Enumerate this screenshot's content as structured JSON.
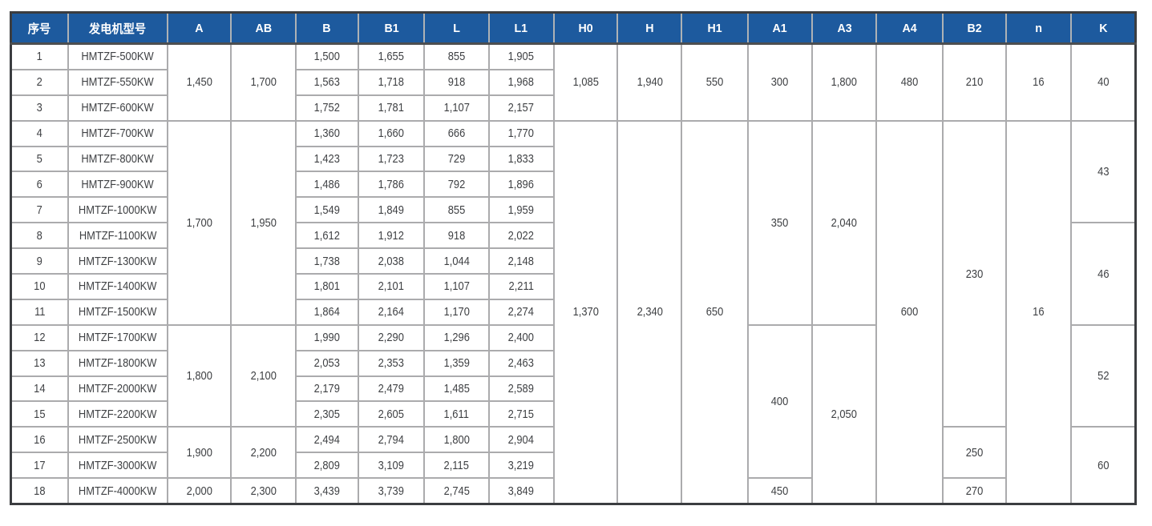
{
  "colors": {
    "header_bg": "#1d5a9e",
    "header_text": "#ffffff",
    "grid_line": "#ababad",
    "outer_border": "#3b3d40",
    "body_text": "#3f4144"
  },
  "table": {
    "columns": [
      {
        "key": "xuhao",
        "label": "序号"
      },
      {
        "key": "model",
        "label": "发电机型号"
      },
      {
        "key": "A",
        "label": "A"
      },
      {
        "key": "AB",
        "label": "AB"
      },
      {
        "key": "B",
        "label": "B"
      },
      {
        "key": "B1",
        "label": "B1"
      },
      {
        "key": "L",
        "label": "L"
      },
      {
        "key": "L1",
        "label": "L1"
      },
      {
        "key": "H0",
        "label": "H0"
      },
      {
        "key": "H",
        "label": "H"
      },
      {
        "key": "H1",
        "label": "H1"
      },
      {
        "key": "A1",
        "label": "A1"
      },
      {
        "key": "A3",
        "label": "A3"
      },
      {
        "key": "A4",
        "label": "A4"
      },
      {
        "key": "B2",
        "label": "B2"
      },
      {
        "key": "n",
        "label": "n"
      },
      {
        "key": "K",
        "label": "K"
      }
    ],
    "rows": [
      {
        "cells": [
          {
            "v": "1"
          },
          {
            "v": "HMTZF-500KW"
          },
          {
            "v": "1,450",
            "rs": 3
          },
          {
            "v": "1,700",
            "rs": 3
          },
          {
            "v": "1,500"
          },
          {
            "v": "1,655"
          },
          {
            "v": "855"
          },
          {
            "v": "1,905"
          },
          {
            "v": "1,085",
            "rs": 3
          },
          {
            "v": "1,940",
            "rs": 3
          },
          {
            "v": "550",
            "rs": 3
          },
          {
            "v": "300",
            "rs": 3
          },
          {
            "v": "1,800",
            "rs": 3
          },
          {
            "v": "480",
            "rs": 3
          },
          {
            "v": "210",
            "rs": 3
          },
          {
            "v": "16",
            "rs": 3
          },
          {
            "v": "40",
            "rs": 3
          }
        ]
      },
      {
        "cells": [
          {
            "v": "2"
          },
          {
            "v": "HMTZF-550KW"
          },
          {
            "v": "1,563"
          },
          {
            "v": "1,718"
          },
          {
            "v": "918"
          },
          {
            "v": "1,968"
          }
        ]
      },
      {
        "cells": [
          {
            "v": "3"
          },
          {
            "v": "HMTZF-600KW"
          },
          {
            "v": "1,752"
          },
          {
            "v": "1,781"
          },
          {
            "v": "1,107"
          },
          {
            "v": "2,157"
          }
        ]
      },
      {
        "cells": [
          {
            "v": "4"
          },
          {
            "v": "HMTZF-700KW"
          },
          {
            "v": "1,700",
            "rs": 8
          },
          {
            "v": "1,950",
            "rs": 8
          },
          {
            "v": "1,360"
          },
          {
            "v": "1,660"
          },
          {
            "v": "666"
          },
          {
            "v": "1,770"
          },
          {
            "v": "1,370",
            "rs": 15
          },
          {
            "v": "2,340",
            "rs": 15
          },
          {
            "v": "650",
            "rs": 15
          },
          {
            "v": "350",
            "rs": 8
          },
          {
            "v": "2,040",
            "rs": 8
          },
          {
            "v": "600",
            "rs": 15
          },
          {
            "v": "230",
            "rs": 12
          },
          {
            "v": "16",
            "rs": 15
          },
          {
            "v": "43",
            "rs": 4
          }
        ]
      },
      {
        "cells": [
          {
            "v": "5"
          },
          {
            "v": "HMTZF-800KW"
          },
          {
            "v": "1,423"
          },
          {
            "v": "1,723"
          },
          {
            "v": "729"
          },
          {
            "v": "1,833"
          }
        ]
      },
      {
        "cells": [
          {
            "v": "6"
          },
          {
            "v": "HMTZF-900KW"
          },
          {
            "v": "1,486"
          },
          {
            "v": "1,786"
          },
          {
            "v": "792"
          },
          {
            "v": "1,896"
          }
        ]
      },
      {
        "cells": [
          {
            "v": "7"
          },
          {
            "v": "HMTZF-1000KW"
          },
          {
            "v": "1,549"
          },
          {
            "v": "1,849"
          },
          {
            "v": "855"
          },
          {
            "v": "1,959"
          }
        ]
      },
      {
        "cells": [
          {
            "v": "8"
          },
          {
            "v": "HMTZF-1100KW"
          },
          {
            "v": "1,612"
          },
          {
            "v": "1,912"
          },
          {
            "v": "918"
          },
          {
            "v": "2,022"
          },
          {
            "v": "46",
            "rs": 4
          }
        ]
      },
      {
        "cells": [
          {
            "v": "9"
          },
          {
            "v": "HMTZF-1300KW"
          },
          {
            "v": "1,738"
          },
          {
            "v": "2,038"
          },
          {
            "v": "1,044"
          },
          {
            "v": "2,148"
          }
        ]
      },
      {
        "cells": [
          {
            "v": "10"
          },
          {
            "v": "HMTZF-1400KW"
          },
          {
            "v": "1,801"
          },
          {
            "v": "2,101"
          },
          {
            "v": "1,107"
          },
          {
            "v": "2,211"
          }
        ]
      },
      {
        "cells": [
          {
            "v": "11"
          },
          {
            "v": "HMTZF-1500KW"
          },
          {
            "v": "1,864"
          },
          {
            "v": "2,164"
          },
          {
            "v": "1,170"
          },
          {
            "v": "2,274"
          }
        ]
      },
      {
        "cells": [
          {
            "v": "12"
          },
          {
            "v": "HMTZF-1700KW"
          },
          {
            "v": "1,800",
            "rs": 4
          },
          {
            "v": "2,100",
            "rs": 4
          },
          {
            "v": "1,990"
          },
          {
            "v": "2,290"
          },
          {
            "v": "1,296"
          },
          {
            "v": "2,400"
          },
          {
            "v": "400",
            "rs": 6
          },
          {
            "v": "2,050",
            "rs": 7
          },
          {
            "v": "52",
            "rs": 4
          }
        ]
      },
      {
        "cells": [
          {
            "v": "13"
          },
          {
            "v": "HMTZF-1800KW"
          },
          {
            "v": "2,053"
          },
          {
            "v": "2,353"
          },
          {
            "v": "1,359"
          },
          {
            "v": "2,463"
          }
        ]
      },
      {
        "cells": [
          {
            "v": "14"
          },
          {
            "v": "HMTZF-2000KW"
          },
          {
            "v": "2,179"
          },
          {
            "v": "2,479"
          },
          {
            "v": "1,485"
          },
          {
            "v": "2,589"
          }
        ]
      },
      {
        "cells": [
          {
            "v": "15"
          },
          {
            "v": "HMTZF-2200KW"
          },
          {
            "v": "2,305"
          },
          {
            "v": "2,605"
          },
          {
            "v": "1,611"
          },
          {
            "v": "2,715"
          }
        ]
      },
      {
        "cells": [
          {
            "v": "16"
          },
          {
            "v": "HMTZF-2500KW"
          },
          {
            "v": "1,900",
            "rs": 2
          },
          {
            "v": "2,200",
            "rs": 2
          },
          {
            "v": "2,494"
          },
          {
            "v": "2,794"
          },
          {
            "v": "1,800"
          },
          {
            "v": "2,904"
          },
          {
            "v": "250",
            "rs": 2
          },
          {
            "v": "60",
            "rs": 3
          }
        ]
      },
      {
        "cells": [
          {
            "v": "17"
          },
          {
            "v": "HMTZF-3000KW"
          },
          {
            "v": "2,809"
          },
          {
            "v": "3,109"
          },
          {
            "v": "2,115"
          },
          {
            "v": "3,219"
          }
        ]
      },
      {
        "cells": [
          {
            "v": "18"
          },
          {
            "v": "HMTZF-4000KW"
          },
          {
            "v": "2,000"
          },
          {
            "v": "2,300"
          },
          {
            "v": "3,439"
          },
          {
            "v": "3,739"
          },
          {
            "v": "2,745"
          },
          {
            "v": "3,849"
          },
          {
            "v": "450"
          },
          {
            "v": "270"
          }
        ]
      }
    ]
  }
}
